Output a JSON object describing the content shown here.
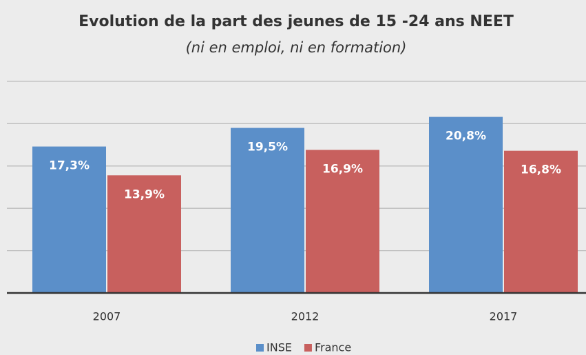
{
  "chart_data": {
    "type": "bar",
    "title": "Evolution de la part des jeunes de 15 -24 ans NEET",
    "subtitle": "(ni en emploi, ni en formation)",
    "categories": [
      "2007",
      "2012",
      "2017"
    ],
    "series": [
      {
        "name": "INSE",
        "color": "#5b8fc9",
        "values": [
          17.3,
          19.5,
          20.8
        ],
        "value_labels": [
          "17,3%",
          "19,5%",
          "20,8%"
        ]
      },
      {
        "name": "France",
        "color": "#c8605e",
        "values": [
          13.9,
          16.9,
          16.8
        ],
        "value_labels": [
          "13,9%",
          "16,9%",
          "16,8%"
        ]
      }
    ],
    "ylim": [
      0,
      25
    ],
    "yticks": [
      0,
      5,
      10,
      15,
      20,
      25
    ],
    "grid": true,
    "legend": "bottom"
  }
}
